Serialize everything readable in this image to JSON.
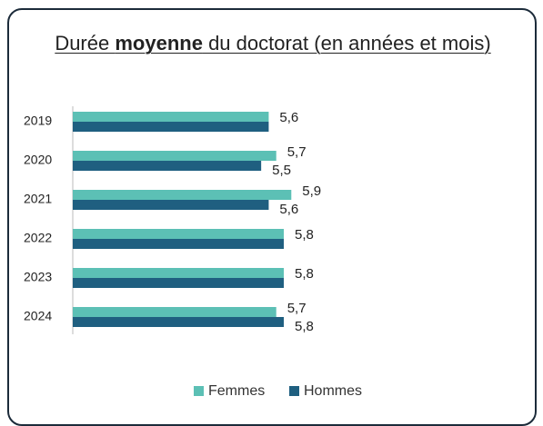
{
  "chart_data": {
    "type": "bar",
    "orientation": "horizontal",
    "title": [
      {
        "text": "Durée "
      },
      {
        "text": "moyenne",
        "bold": true
      },
      {
        "text": " du doctorat (en années et mois)"
      }
    ],
    "categories": [
      "2019",
      "2020",
      "2021",
      "2022",
      "2023",
      "2024"
    ],
    "series": [
      {
        "name": "Femmes",
        "color": "#5cc0b5",
        "values": [
          5.6,
          5.7,
          5.9,
          5.8,
          5.8,
          5.7
        ],
        "value_labels": [
          "5,6",
          "5,7",
          "5,9",
          "5,8",
          "5,8",
          "5,7"
        ]
      },
      {
        "name": "Hommes",
        "color": "#1f5f80",
        "values": [
          5.6,
          5.5,
          5.6,
          5.8,
          5.8,
          5.8
        ],
        "value_labels": [
          null,
          "5,5",
          "5,6",
          null,
          null,
          "5,8"
        ]
      }
    ],
    "xlim": [
      3,
      6.5
    ],
    "legend": "bottom"
  }
}
